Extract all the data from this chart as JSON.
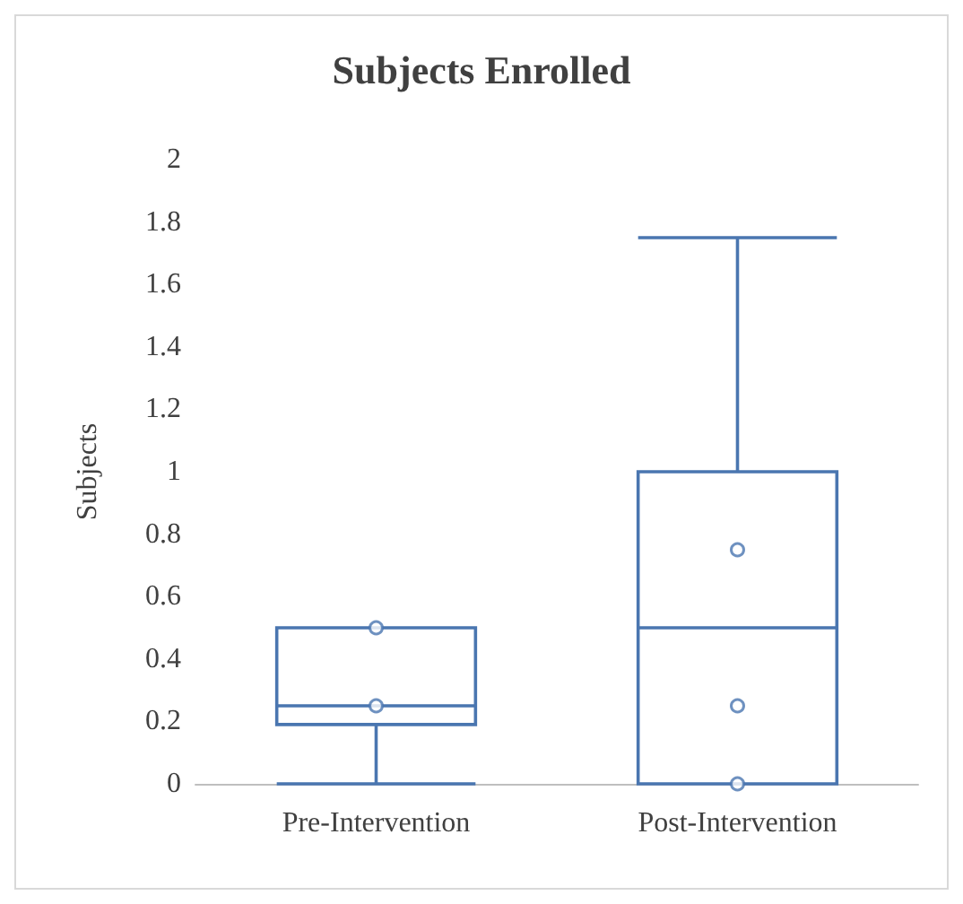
{
  "chart_data": {
    "type": "box",
    "title": "Subjects Enrolled",
    "ylabel": "Subjects",
    "categories": [
      "Pre-Intervention",
      "Post-Intervention"
    ],
    "ylim": [
      0,
      2
    ],
    "yticks": [
      0,
      0.2,
      0.4,
      0.6,
      0.8,
      1,
      1.2,
      1.4,
      1.6,
      1.8,
      2
    ],
    "series": [
      {
        "type": "box",
        "color": "#4a76b0",
        "boxes": [
          {
            "low": 0,
            "q1": 0.19,
            "median": 0.25,
            "q3": 0.5,
            "high": 0.5
          },
          {
            "low": 0,
            "q1": 0,
            "median": 0.5,
            "q3": 1,
            "high": 1.75
          }
        ]
      },
      {
        "type": "scatter",
        "color": "#4a76b0",
        "marker": "circle",
        "x": [
          "Pre-Intervention",
          "Pre-Intervention",
          "Post-Intervention",
          "Post-Intervention",
          "Post-Intervention"
        ],
        "values": [
          0.5,
          0.25,
          0.75,
          0.25,
          0
        ]
      }
    ]
  }
}
